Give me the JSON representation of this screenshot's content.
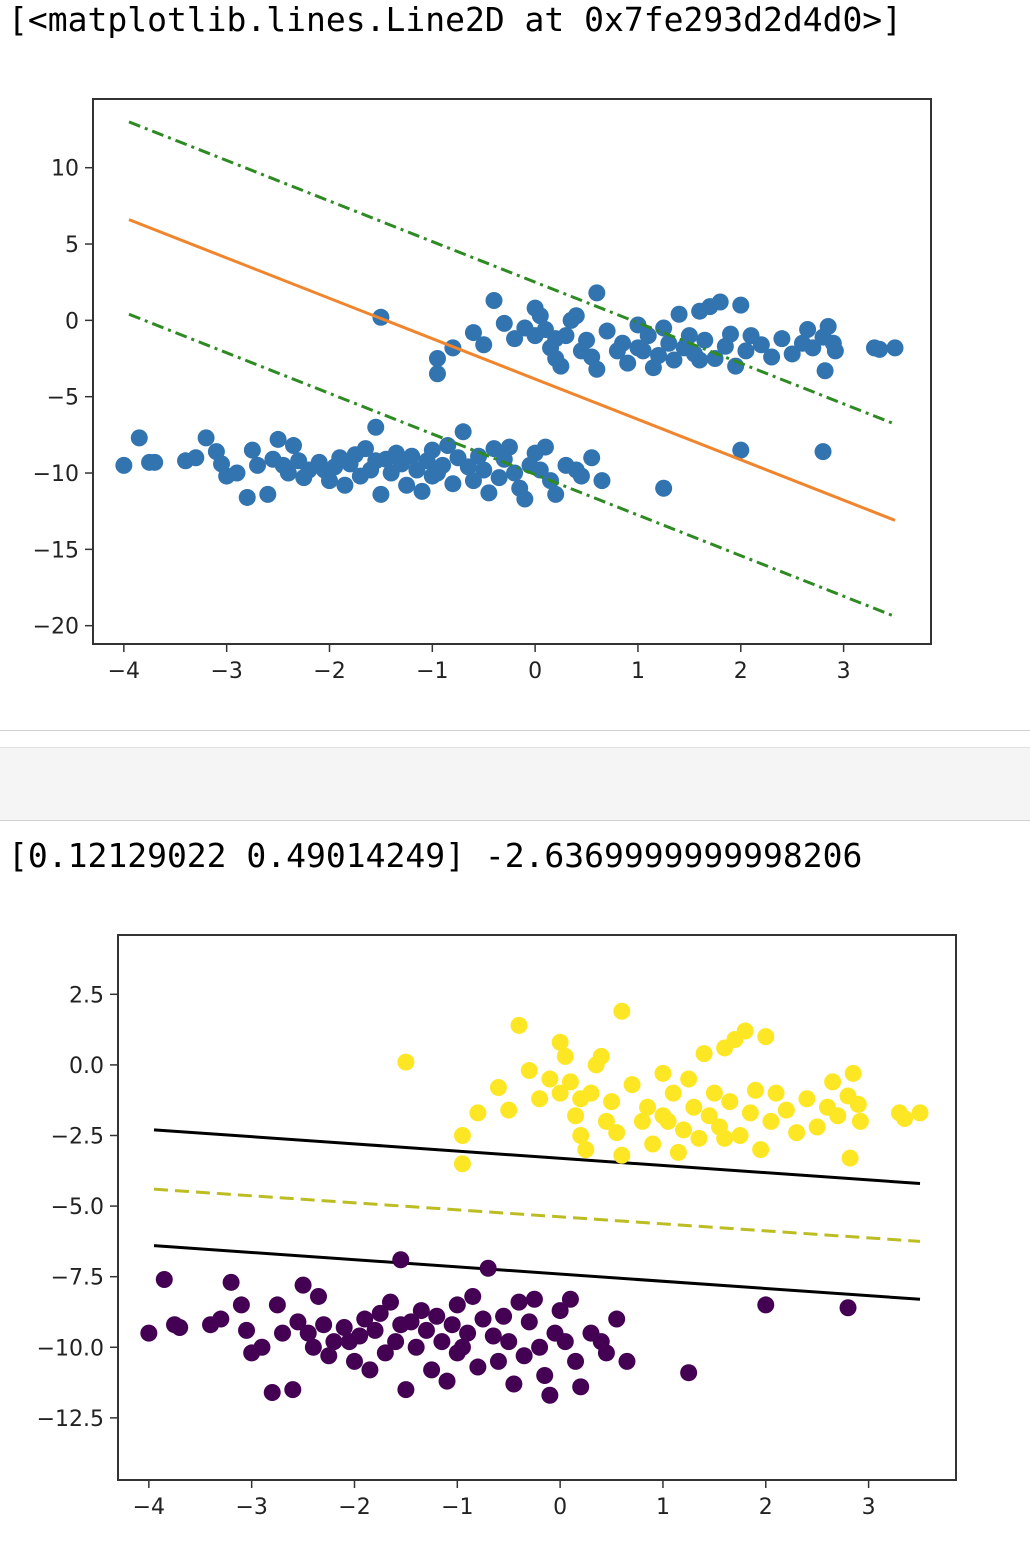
{
  "cells": {
    "output1_text": "[<matplotlib.lines.Line2D at 0x7fe293d2d4d0>]",
    "output2_text": "[0.12129022 0.49014249] -2.6369999999998206"
  },
  "chart_data": [
    {
      "type": "scatter",
      "title": "",
      "xlabel": "",
      "ylabel": "",
      "xlim": [
        -4.3,
        3.85
      ],
      "ylim": [
        -21.2,
        14.5
      ],
      "xticks": [
        -4,
        -3,
        -2,
        -1,
        0,
        1,
        2,
        3
      ],
      "yticks": [
        10,
        5,
        0,
        -5,
        -10,
        -15,
        -20
      ],
      "xtick_labels": [
        "−4",
        "−3",
        "−2",
        "−1",
        "0",
        "1",
        "2",
        "3"
      ],
      "ytick_labels": [
        "10",
        "5",
        "0",
        "−5",
        "−10",
        "−15",
        "−20"
      ],
      "grid": false,
      "colors": {
        "points": "#3274b0",
        "main_line": "#f0852d",
        "margin_lines": "#2e8a22"
      },
      "lines": [
        {
          "style": "solid",
          "color": "#f0852d",
          "x": [
            -3.95,
            3.5
          ],
          "y": [
            6.6,
            -13.1
          ]
        },
        {
          "style": "dashdot",
          "color": "#2e8a22",
          "x": [
            -3.95,
            3.5
          ],
          "y": [
            13.0,
            -6.8
          ]
        },
        {
          "style": "dashdot",
          "color": "#2e8a22",
          "x": [
            -3.95,
            3.5
          ],
          "y": [
            0.4,
            -19.4
          ]
        }
      ],
      "points_upper": [
        [
          -1.5,
          0.2
        ],
        [
          -0.95,
          -2.5
        ],
        [
          -0.95,
          -3.5
        ],
        [
          -0.8,
          -1.8
        ],
        [
          -0.6,
          -0.8
        ],
        [
          -0.5,
          -1.6
        ],
        [
          -0.4,
          1.3
        ],
        [
          -0.3,
          -0.2
        ],
        [
          -0.2,
          -1.2
        ],
        [
          -0.1,
          -0.5
        ],
        [
          0.0,
          0.8
        ],
        [
          0.05,
          0.3
        ],
        [
          0.1,
          -0.6
        ],
        [
          0.15,
          -1.8
        ],
        [
          0.2,
          -2.5
        ],
        [
          0.25,
          -3.0
        ],
        [
          0.3,
          -1.0
        ],
        [
          0.35,
          0.0
        ],
        [
          0.4,
          0.3
        ],
        [
          0.45,
          -2.0
        ],
        [
          0.5,
          -1.3
        ],
        [
          0.6,
          1.8
        ],
        [
          0.6,
          -3.2
        ],
        [
          0.7,
          -0.7
        ],
        [
          0.8,
          -2.0
        ],
        [
          0.85,
          -1.5
        ],
        [
          0.9,
          -2.8
        ],
        [
          1.0,
          -0.3
        ],
        [
          1.0,
          -1.8
        ],
        [
          1.1,
          -1.0
        ],
        [
          1.15,
          -3.1
        ],
        [
          1.2,
          -2.3
        ],
        [
          1.25,
          -0.5
        ],
        [
          1.3,
          -1.5
        ],
        [
          1.35,
          -2.6
        ],
        [
          1.4,
          0.4
        ],
        [
          1.45,
          -1.8
        ],
        [
          1.5,
          -1.0
        ],
        [
          1.55,
          -2.2
        ],
        [
          1.6,
          0.6
        ],
        [
          1.65,
          -1.3
        ],
        [
          1.7,
          0.9
        ],
        [
          1.75,
          -2.5
        ],
        [
          1.8,
          1.2
        ],
        [
          1.85,
          -1.7
        ],
        [
          1.9,
          -0.9
        ],
        [
          1.95,
          -3.0
        ],
        [
          2.0,
          1.0
        ],
        [
          2.05,
          -2.0
        ],
        [
          2.1,
          -1.0
        ],
        [
          2.2,
          -1.6
        ],
        [
          2.3,
          -2.4
        ],
        [
          2.4,
          -1.2
        ],
        [
          2.5,
          -2.2
        ],
        [
          2.6,
          -1.5
        ],
        [
          2.65,
          -0.6
        ],
        [
          2.7,
          -1.8
        ],
        [
          2.8,
          -1.1
        ],
        [
          2.82,
          -3.3
        ],
        [
          2.85,
          -0.4
        ],
        [
          2.9,
          -1.5
        ],
        [
          2.92,
          -2.0
        ],
        [
          3.3,
          -1.8
        ],
        [
          3.35,
          -1.9
        ],
        [
          3.5,
          -1.8
        ],
        [
          0.0,
          -1.0
        ],
        [
          0.2,
          -1.2
        ],
        [
          0.55,
          -2.4
        ],
        [
          1.05,
          -2.0
        ],
        [
          1.6,
          -2.6
        ]
      ],
      "points_lower": [
        [
          -4.0,
          -9.5
        ],
        [
          -3.85,
          -7.7
        ],
        [
          -3.75,
          -9.3
        ],
        [
          -3.7,
          -9.3
        ],
        [
          -3.4,
          -9.2
        ],
        [
          -3.3,
          -9.0
        ],
        [
          -3.2,
          -7.7
        ],
        [
          -3.1,
          -8.6
        ],
        [
          -3.05,
          -9.4
        ],
        [
          -3.0,
          -10.2
        ],
        [
          -2.9,
          -10.0
        ],
        [
          -2.8,
          -11.6
        ],
        [
          -2.75,
          -8.5
        ],
        [
          -2.7,
          -9.5
        ],
        [
          -2.6,
          -11.4
        ],
        [
          -2.55,
          -9.1
        ],
        [
          -2.5,
          -7.8
        ],
        [
          -2.45,
          -9.5
        ],
        [
          -2.4,
          -10.0
        ],
        [
          -2.35,
          -8.2
        ],
        [
          -2.3,
          -9.2
        ],
        [
          -2.25,
          -10.3
        ],
        [
          -2.2,
          -9.8
        ],
        [
          -2.1,
          -9.3
        ],
        [
          -2.0,
          -10.5
        ],
        [
          -1.95,
          -9.6
        ],
        [
          -1.9,
          -9.0
        ],
        [
          -1.85,
          -10.8
        ],
        [
          -1.8,
          -9.4
        ],
        [
          -1.75,
          -8.8
        ],
        [
          -1.7,
          -10.2
        ],
        [
          -1.65,
          -8.4
        ],
        [
          -1.6,
          -9.8
        ],
        [
          -1.55,
          -7.0
        ],
        [
          -1.5,
          -11.4
        ],
        [
          -1.45,
          -9.1
        ],
        [
          -1.4,
          -10.0
        ],
        [
          -1.35,
          -8.7
        ],
        [
          -1.3,
          -9.4
        ],
        [
          -1.25,
          -10.8
        ],
        [
          -1.2,
          -8.9
        ],
        [
          -1.15,
          -9.8
        ],
        [
          -1.1,
          -11.2
        ],
        [
          -1.05,
          -9.2
        ],
        [
          -1.0,
          -8.5
        ],
        [
          -0.95,
          -10.0
        ],
        [
          -0.9,
          -9.5
        ],
        [
          -0.85,
          -8.2
        ],
        [
          -0.8,
          -10.7
        ],
        [
          -0.75,
          -9.0
        ],
        [
          -0.7,
          -7.3
        ],
        [
          -0.65,
          -9.6
        ],
        [
          -0.6,
          -10.5
        ],
        [
          -0.55,
          -8.9
        ],
        [
          -0.5,
          -9.8
        ],
        [
          -0.45,
          -11.3
        ],
        [
          -0.4,
          -8.4
        ],
        [
          -0.35,
          -10.3
        ],
        [
          -0.3,
          -9.1
        ],
        [
          -0.25,
          -8.3
        ],
        [
          -0.2,
          -10.0
        ],
        [
          -0.15,
          -11.0
        ],
        [
          -0.1,
          -11.7
        ],
        [
          -0.05,
          -9.5
        ],
        [
          0.0,
          -8.7
        ],
        [
          0.05,
          -9.8
        ],
        [
          0.1,
          -8.3
        ],
        [
          0.15,
          -10.5
        ],
        [
          0.2,
          -11.4
        ],
        [
          0.3,
          -9.5
        ],
        [
          0.4,
          -9.8
        ],
        [
          0.45,
          -10.2
        ],
        [
          0.55,
          -9.0
        ],
        [
          0.65,
          -10.5
        ],
        [
          1.25,
          -11.0
        ],
        [
          2.0,
          -8.5
        ],
        [
          2.8,
          -8.6
        ],
        [
          -1.55,
          -9.2
        ],
        [
          -1.0,
          -10.2
        ],
        [
          -2.05,
          -9.8
        ]
      ]
    },
    {
      "type": "scatter",
      "title": "",
      "xlabel": "",
      "ylabel": "",
      "xlim": [
        -4.3,
        3.85
      ],
      "ylim": [
        -14.7,
        4.6
      ],
      "xticks": [
        -4,
        -3,
        -2,
        -1,
        0,
        1,
        2,
        3
      ],
      "yticks": [
        2.5,
        0.0,
        -2.5,
        -5.0,
        -7.5,
        -10.0,
        -12.5
      ],
      "xtick_labels": [
        "−4",
        "−3",
        "−2",
        "−1",
        "0",
        "1",
        "2",
        "3"
      ],
      "ytick_labels": [
        "2.5",
        "0.0",
        "−2.5",
        "−5.0",
        "−7.5",
        "−10.0",
        "−12.5"
      ],
      "grid": false,
      "colors": {
        "class_positive": "#fde725",
        "class_negative": "#440154",
        "boundary": "#bcbd22",
        "margins": "#000000"
      },
      "lines": [
        {
          "style": "solid",
          "color": "#000000",
          "x": [
            -3.95,
            3.5
          ],
          "y": [
            -2.3,
            -4.2
          ]
        },
        {
          "style": "dashed",
          "color": "#bcbd22",
          "x": [
            -3.95,
            3.5
          ],
          "y": [
            -4.4,
            -6.25
          ]
        },
        {
          "style": "solid",
          "color": "#000000",
          "x": [
            -3.95,
            3.5
          ],
          "y": [
            -6.4,
            -8.3
          ]
        }
      ],
      "points_upper": [
        [
          -1.5,
          0.1
        ],
        [
          -0.95,
          -2.5
        ],
        [
          -0.95,
          -3.5
        ],
        [
          -0.8,
          -1.7
        ],
        [
          -0.6,
          -0.8
        ],
        [
          -0.5,
          -1.6
        ],
        [
          -0.4,
          1.4
        ],
        [
          -0.3,
          -0.2
        ],
        [
          -0.2,
          -1.2
        ],
        [
          -0.1,
          -0.5
        ],
        [
          0.0,
          0.8
        ],
        [
          0.05,
          0.3
        ],
        [
          0.1,
          -0.6
        ],
        [
          0.15,
          -1.8
        ],
        [
          0.2,
          -2.5
        ],
        [
          0.25,
          -3.0
        ],
        [
          0.3,
          -1.0
        ],
        [
          0.35,
          0.0
        ],
        [
          0.4,
          0.3
        ],
        [
          0.45,
          -2.0
        ],
        [
          0.5,
          -1.3
        ],
        [
          0.6,
          1.9
        ],
        [
          0.6,
          -3.2
        ],
        [
          0.7,
          -0.7
        ],
        [
          0.8,
          -2.0
        ],
        [
          0.85,
          -1.5
        ],
        [
          0.9,
          -2.8
        ],
        [
          1.0,
          -0.3
        ],
        [
          1.0,
          -1.8
        ],
        [
          1.1,
          -1.0
        ],
        [
          1.15,
          -3.1
        ],
        [
          1.2,
          -2.3
        ],
        [
          1.25,
          -0.5
        ],
        [
          1.3,
          -1.5
        ],
        [
          1.35,
          -2.6
        ],
        [
          1.4,
          0.4
        ],
        [
          1.45,
          -1.8
        ],
        [
          1.5,
          -1.0
        ],
        [
          1.55,
          -2.2
        ],
        [
          1.6,
          0.6
        ],
        [
          1.65,
          -1.3
        ],
        [
          1.7,
          0.9
        ],
        [
          1.75,
          -2.5
        ],
        [
          1.8,
          1.2
        ],
        [
          1.85,
          -1.7
        ],
        [
          1.9,
          -0.9
        ],
        [
          1.95,
          -3.0
        ],
        [
          2.0,
          1.0
        ],
        [
          2.05,
          -2.0
        ],
        [
          2.1,
          -1.0
        ],
        [
          2.2,
          -1.6
        ],
        [
          2.3,
          -2.4
        ],
        [
          2.4,
          -1.2
        ],
        [
          2.5,
          -2.2
        ],
        [
          2.6,
          -1.5
        ],
        [
          2.65,
          -0.6
        ],
        [
          2.7,
          -1.8
        ],
        [
          2.8,
          -1.1
        ],
        [
          2.82,
          -3.3
        ],
        [
          2.85,
          -0.3
        ],
        [
          2.9,
          -1.4
        ],
        [
          2.92,
          -2.0
        ],
        [
          3.3,
          -1.7
        ],
        [
          3.35,
          -1.9
        ],
        [
          3.5,
          -1.7
        ],
        [
          0.0,
          -1.0
        ],
        [
          0.2,
          -1.2
        ],
        [
          0.55,
          -2.4
        ],
        [
          1.05,
          -2.0
        ],
        [
          1.6,
          -2.6
        ]
      ],
      "points_lower": [
        [
          -4.0,
          -9.5
        ],
        [
          -3.85,
          -7.6
        ],
        [
          -3.75,
          -9.2
        ],
        [
          -3.7,
          -9.3
        ],
        [
          -3.4,
          -9.2
        ],
        [
          -3.3,
          -9.0
        ],
        [
          -3.2,
          -7.7
        ],
        [
          -3.1,
          -8.5
        ],
        [
          -3.05,
          -9.4
        ],
        [
          -3.0,
          -10.2
        ],
        [
          -2.9,
          -10.0
        ],
        [
          -2.8,
          -11.6
        ],
        [
          -2.75,
          -8.5
        ],
        [
          -2.7,
          -9.5
        ],
        [
          -2.6,
          -11.5
        ],
        [
          -2.55,
          -9.1
        ],
        [
          -2.5,
          -7.8
        ],
        [
          -2.45,
          -9.5
        ],
        [
          -2.4,
          -10.0
        ],
        [
          -2.35,
          -8.2
        ],
        [
          -2.3,
          -9.2
        ],
        [
          -2.25,
          -10.3
        ],
        [
          -2.2,
          -9.8
        ],
        [
          -2.1,
          -9.3
        ],
        [
          -2.0,
          -10.5
        ],
        [
          -1.95,
          -9.6
        ],
        [
          -1.9,
          -9.0
        ],
        [
          -1.85,
          -10.8
        ],
        [
          -1.8,
          -9.4
        ],
        [
          -1.75,
          -8.8
        ],
        [
          -1.7,
          -10.2
        ],
        [
          -1.65,
          -8.4
        ],
        [
          -1.6,
          -9.8
        ],
        [
          -1.55,
          -6.9
        ],
        [
          -1.5,
          -11.5
        ],
        [
          -1.45,
          -9.1
        ],
        [
          -1.4,
          -10.0
        ],
        [
          -1.35,
          -8.7
        ],
        [
          -1.3,
          -9.4
        ],
        [
          -1.25,
          -10.8
        ],
        [
          -1.2,
          -8.9
        ],
        [
          -1.15,
          -9.8
        ],
        [
          -1.1,
          -11.2
        ],
        [
          -1.05,
          -9.2
        ],
        [
          -1.0,
          -8.5
        ],
        [
          -0.95,
          -10.0
        ],
        [
          -0.9,
          -9.5
        ],
        [
          -0.85,
          -8.2
        ],
        [
          -0.8,
          -10.7
        ],
        [
          -0.75,
          -9.0
        ],
        [
          -0.7,
          -7.2
        ],
        [
          -0.65,
          -9.6
        ],
        [
          -0.6,
          -10.5
        ],
        [
          -0.55,
          -8.9
        ],
        [
          -0.5,
          -9.8
        ],
        [
          -0.45,
          -11.3
        ],
        [
          -0.4,
          -8.4
        ],
        [
          -0.35,
          -10.3
        ],
        [
          -0.3,
          -9.1
        ],
        [
          -0.25,
          -8.3
        ],
        [
          -0.2,
          -10.0
        ],
        [
          -0.15,
          -11.0
        ],
        [
          -0.1,
          -11.7
        ],
        [
          -0.05,
          -9.5
        ],
        [
          0.0,
          -8.7
        ],
        [
          0.05,
          -9.8
        ],
        [
          0.1,
          -8.3
        ],
        [
          0.15,
          -10.5
        ],
        [
          0.2,
          -11.4
        ],
        [
          0.3,
          -9.5
        ],
        [
          0.4,
          -9.8
        ],
        [
          0.45,
          -10.2
        ],
        [
          0.55,
          -9.0
        ],
        [
          0.65,
          -10.5
        ],
        [
          1.25,
          -10.9
        ],
        [
          2.0,
          -8.5
        ],
        [
          2.8,
          -8.6
        ],
        [
          -1.55,
          -9.2
        ],
        [
          -1.0,
          -10.2
        ],
        [
          -2.05,
          -9.8
        ]
      ]
    }
  ]
}
